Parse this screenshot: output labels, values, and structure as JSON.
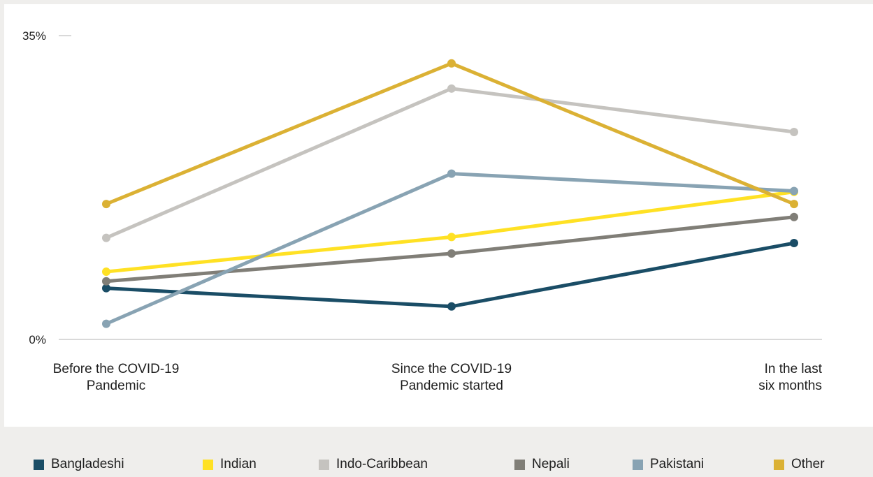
{
  "chart_data": {
    "type": "line",
    "categories": [
      [
        "Before the COVID-19",
        "Pandemic"
      ],
      [
        "Since the COVID-19",
        "Pandemic started"
      ],
      [
        "In the last",
        "six months"
      ]
    ],
    "y_ticks": [
      "0%",
      "35%"
    ],
    "ylim": [
      0,
      35
    ],
    "series": [
      {
        "name": "Bangladeshi",
        "color": "#1a4d66",
        "values": [
          5.9,
          3.8,
          11.1
        ]
      },
      {
        "name": "Indian",
        "color": "#ffe124",
        "values": [
          7.8,
          11.8,
          17.0
        ]
      },
      {
        "name": "Indo-Caribbean",
        "color": "#c5c3bf",
        "values": [
          11.7,
          28.9,
          23.9
        ]
      },
      {
        "name": "Nepali",
        "color": "#807e77",
        "values": [
          6.7,
          9.9,
          14.1
        ]
      },
      {
        "name": "Pakistani",
        "color": "#88a3b3",
        "values": [
          1.8,
          19.1,
          17.1
        ]
      },
      {
        "name": "Other",
        "color": "#dbb134",
        "values": [
          15.6,
          31.8,
          15.6
        ]
      }
    ]
  }
}
